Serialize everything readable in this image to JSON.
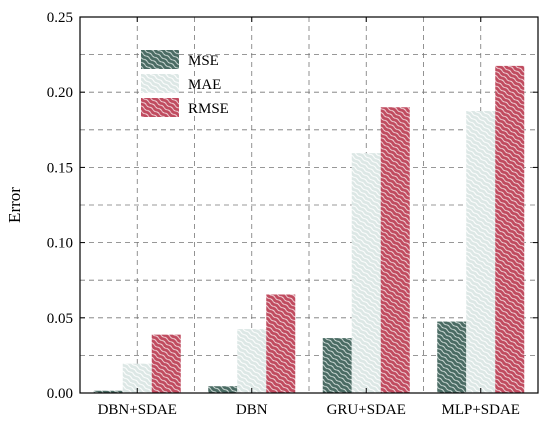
{
  "chart_data": {
    "type": "bar",
    "categories": [
      "DBN+SDAE",
      "DBN",
      "GRU+SDAE",
      "MLP+SDAE"
    ],
    "series": [
      {
        "name": "MSE",
        "values": [
          0.0015,
          0.0045,
          0.0365,
          0.0475
        ],
        "color": "#4a6b63"
      },
      {
        "name": "MAE",
        "values": [
          0.0195,
          0.0425,
          0.1595,
          0.1875
        ],
        "color": "#dce7e5"
      },
      {
        "name": "RMSE",
        "values": [
          0.0388,
          0.0655,
          0.19,
          0.2175
        ],
        "color": "#c04b5f"
      }
    ],
    "xlabel": "",
    "ylabel": "Error",
    "ylim": [
      0,
      0.25
    ],
    "yticks": [
      "0.00",
      "0.05",
      "0.10",
      "0.15",
      "0.20",
      "0.25"
    ],
    "ytick_values": [
      0,
      0.05,
      0.1,
      0.15,
      0.2,
      0.25
    ],
    "grid": "dashed, major and minor",
    "legend_position": "top-left"
  }
}
